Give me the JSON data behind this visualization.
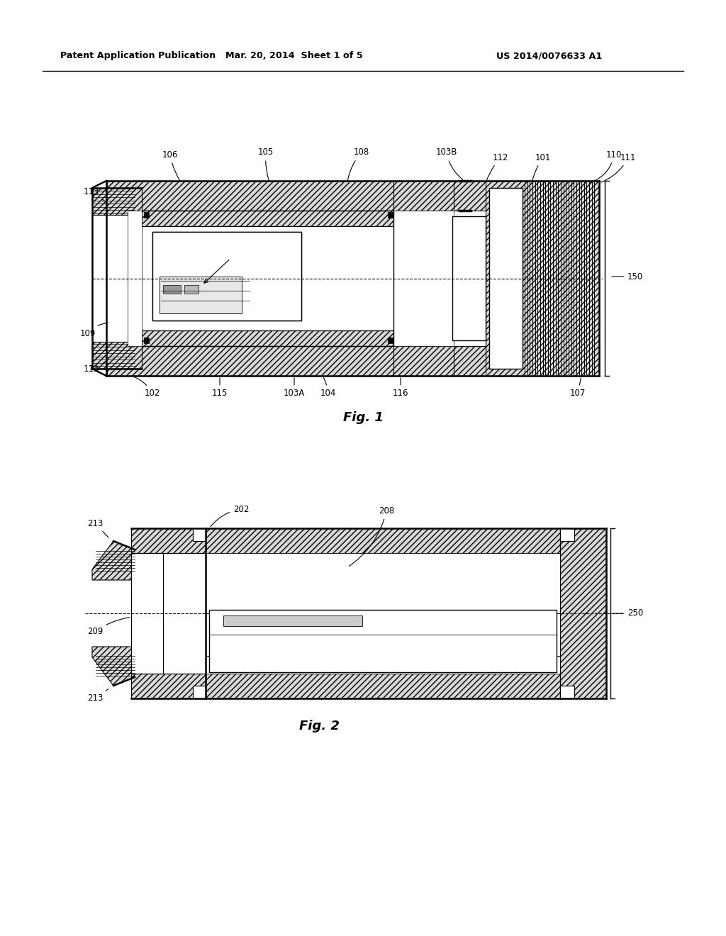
{
  "header_left": "Patent Application Publication",
  "header_mid": "Mar. 20, 2014  Sheet 1 of 5",
  "header_right": "US 2014/0076633 A1",
  "fig1_label": "Fig. 1",
  "fig2_label": "Fig. 2",
  "background_color": "#ffffff",
  "line_color": "#000000"
}
